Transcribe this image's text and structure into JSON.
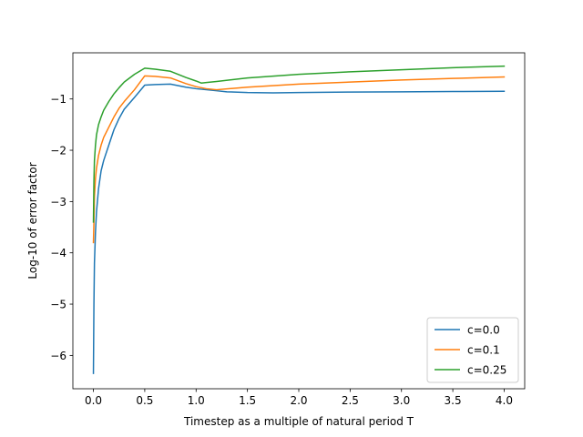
{
  "chart_data": {
    "type": "line",
    "title": "",
    "xlabel": "Timestep as a multiple of natural period T",
    "ylabel": "Log-10 of error factor",
    "xlim": [
      -0.2,
      4.2
    ],
    "ylim": [
      -6.65,
      -0.1
    ],
    "xticks": [
      0.0,
      0.5,
      1.0,
      1.5,
      2.0,
      2.5,
      3.0,
      3.5,
      4.0
    ],
    "xtick_labels": [
      "0.0",
      "0.5",
      "1.0",
      "1.5",
      "2.0",
      "2.5",
      "3.0",
      "3.5",
      "4.0"
    ],
    "yticks": [
      -6,
      -5,
      -4,
      -3,
      -2,
      -1
    ],
    "ytick_labels": [
      "−6",
      "−5",
      "−4",
      "−3",
      "−2",
      "−1"
    ],
    "grid": false,
    "legend_position": "lower-right",
    "series": [
      {
        "name": "c=0.0",
        "color": "#1f77b4",
        "x": [
          0.0,
          0.005,
          0.01,
          0.02,
          0.03,
          0.05,
          0.075,
          0.1,
          0.15,
          0.2,
          0.25,
          0.3,
          0.4,
          0.5,
          0.6,
          0.75,
          0.9,
          1.0,
          1.1,
          1.2,
          1.3,
          1.5,
          1.75,
          2.0,
          2.5,
          3.0,
          3.5,
          4.0
        ],
        "y": [
          -6.35,
          -5.0,
          -4.2,
          -3.6,
          -3.2,
          -2.75,
          -2.4,
          -2.2,
          -1.9,
          -1.6,
          -1.38,
          -1.2,
          -0.97,
          -0.73,
          -0.72,
          -0.71,
          -0.77,
          -0.8,
          -0.82,
          -0.84,
          -0.86,
          -0.875,
          -0.88,
          -0.875,
          -0.865,
          -0.86,
          -0.855,
          -0.85
        ]
      },
      {
        "name": "c=0.1",
        "color": "#ff7f0e",
        "x": [
          0.0,
          0.005,
          0.01,
          0.02,
          0.03,
          0.05,
          0.075,
          0.1,
          0.15,
          0.2,
          0.25,
          0.3,
          0.4,
          0.5,
          0.6,
          0.75,
          0.9,
          1.0,
          1.1,
          1.2,
          1.5,
          2.0,
          2.5,
          3.0,
          3.5,
          4.0
        ],
        "y": [
          -3.8,
          -3.4,
          -2.9,
          -2.55,
          -2.35,
          -2.1,
          -1.9,
          -1.75,
          -1.55,
          -1.35,
          -1.18,
          -1.05,
          -0.82,
          -0.55,
          -0.56,
          -0.59,
          -0.7,
          -0.76,
          -0.8,
          -0.82,
          -0.77,
          -0.71,
          -0.67,
          -0.63,
          -0.6,
          -0.57
        ]
      },
      {
        "name": "c=0.25",
        "color": "#2ca02c",
        "x": [
          0.0,
          0.005,
          0.01,
          0.02,
          0.03,
          0.05,
          0.075,
          0.1,
          0.15,
          0.2,
          0.25,
          0.3,
          0.4,
          0.5,
          0.6,
          0.75,
          0.9,
          1.0,
          1.05,
          1.1,
          1.2,
          1.5,
          2.0,
          2.5,
          3.0,
          3.5,
          4.0
        ],
        "y": [
          -3.4,
          -2.6,
          -2.2,
          -1.9,
          -1.7,
          -1.5,
          -1.35,
          -1.22,
          -1.05,
          -0.9,
          -0.78,
          -0.67,
          -0.52,
          -0.4,
          -0.42,
          -0.46,
          -0.58,
          -0.65,
          -0.69,
          -0.68,
          -0.66,
          -0.59,
          -0.52,
          -0.47,
          -0.43,
          -0.39,
          -0.36
        ]
      }
    ]
  }
}
